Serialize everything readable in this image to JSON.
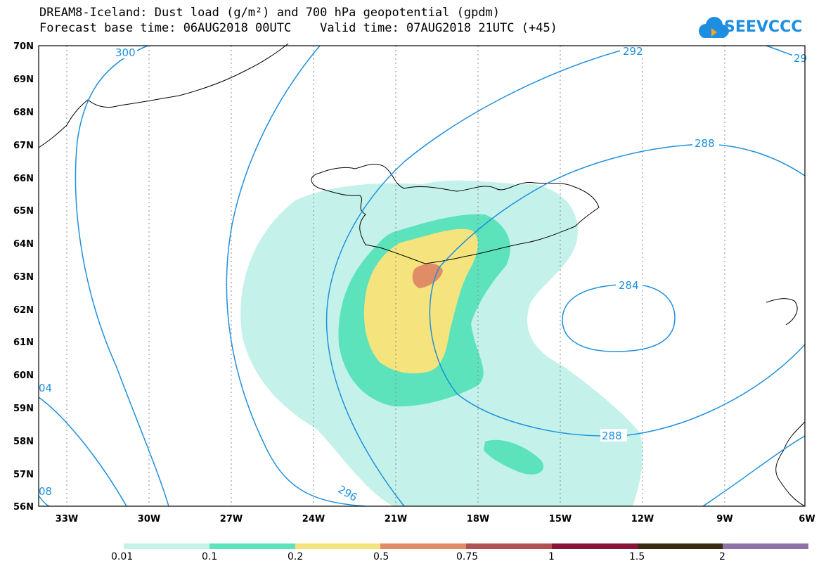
{
  "header": {
    "title_line1": "DREAM8-Iceland: Dust load (g/m²) and 700 hPa geopotential (gpdm)",
    "title_line2": "Forecast base time: 06AUG2018 00UTC    Valid time: 07AUG2018 21UTC (+45)"
  },
  "logo": {
    "text": "SEEVCCC",
    "icon": "cloud-icon",
    "color": "#1e8fe0"
  },
  "axes": {
    "lat_labels": [
      "70N",
      "69N",
      "68N",
      "67N",
      "66N",
      "65N",
      "64N",
      "63N",
      "62N",
      "61N",
      "60N",
      "59N",
      "58N",
      "57N",
      "56N"
    ],
    "lon_labels": [
      "33W",
      "30W",
      "27W",
      "24W",
      "21W",
      "18W",
      "15W",
      "12W",
      "9W",
      "6W"
    ],
    "lat_range": [
      56,
      70
    ],
    "lon_range": [
      -34,
      -6
    ]
  },
  "contours": {
    "color": "#1e90dd",
    "labels": [
      "300",
      "292",
      "29",
      "288",
      "284",
      "288",
      "296",
      "04",
      "08"
    ]
  },
  "dust_levels": {
    "colors": [
      "#c4f2ea",
      "#5de3bb",
      "#f5e47e",
      "#e08c66",
      "#b05252",
      "#8a1438",
      "#3d2a14",
      "#9070a8"
    ],
    "labels": [
      "0.01",
      "0.1",
      "0.2",
      "0.5",
      "0.75",
      "1",
      "1.5",
      "2"
    ]
  }
}
